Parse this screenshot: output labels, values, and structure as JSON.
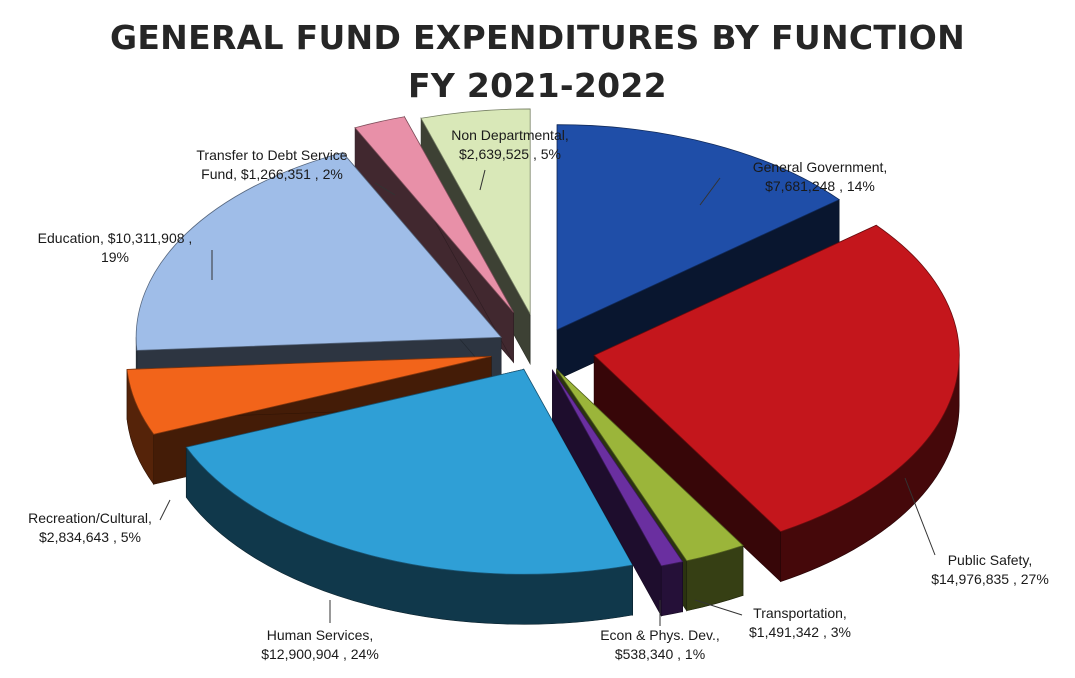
{
  "title_line1": "GENERAL FUND EXPENDITURES BY FUNCTION",
  "title_line2": "FY 2021-2022",
  "chart_data": {
    "type": "pie",
    "style": "3d-exploded",
    "slices": [
      {
        "key": "general-government",
        "name": "General Government",
        "value": 7681248,
        "value_label": "$7,681,248",
        "percent_label": "14%",
        "label_lines": [
          "General Government,",
          "$7,681,248 , 14%"
        ],
        "color": "#1f4ea8"
      },
      {
        "key": "public-safety",
        "name": "Public Safety",
        "value": 14976835,
        "value_label": "$14,976,835",
        "percent_label": "27%",
        "label_lines": [
          "Public Safety,",
          "$14,976,835 , 27%"
        ],
        "color": "#c4161c"
      },
      {
        "key": "transportation",
        "name": "Transportation",
        "value": 1491342,
        "value_label": "$1,491,342",
        "percent_label": "3%",
        "label_lines": [
          "Transportation,",
          "$1,491,342 , 3%"
        ],
        "color": "#9bb53a"
      },
      {
        "key": "econ-phys-dev",
        "name": "Econ & Phys. Dev.",
        "value": 538340,
        "value_label": "$538,340",
        "percent_label": "1%",
        "label_lines": [
          "Econ & Phys. Dev.,",
          "$538,340 , 1%"
        ],
        "color": "#6a2fa0"
      },
      {
        "key": "human-services",
        "name": "Human Services",
        "value": 12900904,
        "value_label": "$12,900,904",
        "percent_label": "24%",
        "label_lines": [
          "Human Services,",
          "$12,900,904 , 24%"
        ],
        "color": "#2f9fd6"
      },
      {
        "key": "recreation-cultural",
        "name": "Recreation/Cultural",
        "value": 2834643,
        "value_label": "$2,834,643",
        "percent_label": "5%",
        "label_lines": [
          "Recreation/Cultural,",
          "$2,834,643 , 5%"
        ],
        "color": "#f2641a"
      },
      {
        "key": "education",
        "name": "Education",
        "value": 10311908,
        "value_label": "$10,311,908",
        "percent_label": "19%",
        "label_lines": [
          "Education,  $10,311,908 ,",
          "19%"
        ],
        "color": "#9fbde8"
      },
      {
        "key": "transfer-debt-service",
        "name": "Transfer to Debt Service Fund",
        "value": 1266351,
        "value_label": "$1,266,351",
        "percent_label": "2%",
        "label_lines": [
          "Transfer to Debt Service",
          "Fund,  $1,266,351 , 2%"
        ],
        "color": "#e890a8"
      },
      {
        "key": "non-departmental",
        "name": "Non Departmental",
        "value": 2639525,
        "value_label": "$2,639,525",
        "percent_label": "5%",
        "label_lines": [
          "Non Departmental,",
          "$2,639,525 , 5%"
        ],
        "color": "#d9e8b8"
      }
    ]
  }
}
